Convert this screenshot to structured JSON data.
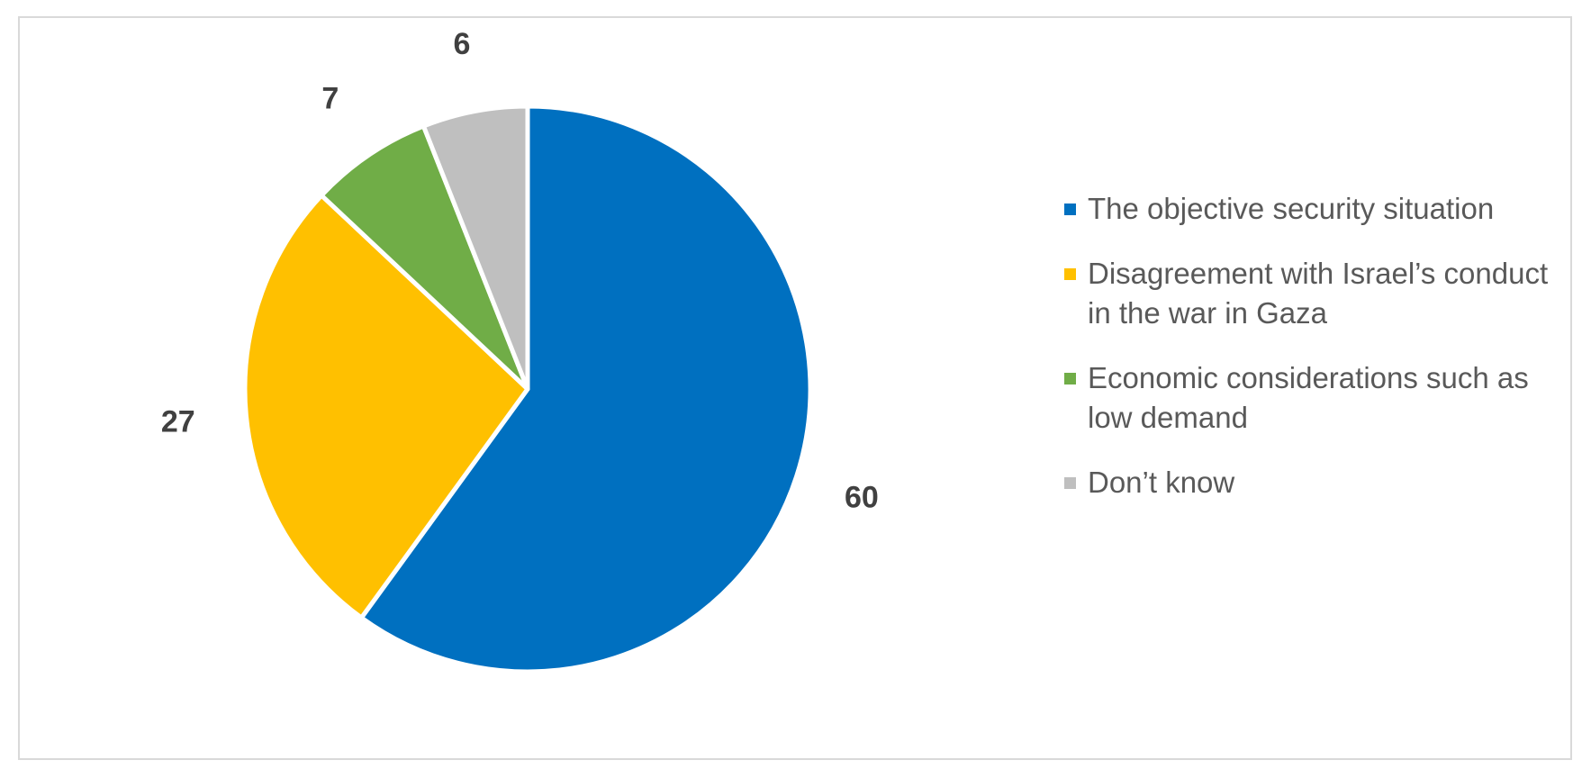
{
  "chart_data": {
    "type": "pie",
    "categories": [
      "The objective security situation",
      "Disagreement with Israel’s conduct in the war in Gaza",
      "Economic considerations such as low demand",
      "Don’t know"
    ],
    "values": [
      60,
      27,
      7,
      6
    ],
    "labels": [
      "60",
      "27",
      "7",
      "6"
    ],
    "colors": [
      "#0070C0",
      "#FFC000",
      "#70AD47",
      "#BFBFBF"
    ],
    "start": "12 o'clock, clockwise",
    "legend_position": "right"
  },
  "legend": {
    "items": [
      {
        "label": "The objective security situation",
        "color": "#0070C0"
      },
      {
        "label": "Disagreement with Israel’s conduct in the war in Gaza",
        "color": "#FFC000"
      },
      {
        "label": "Economic considerations such as low demand",
        "color": "#70AD47"
      },
      {
        "label": "Don’t know",
        "color": "#BFBFBF"
      }
    ]
  }
}
